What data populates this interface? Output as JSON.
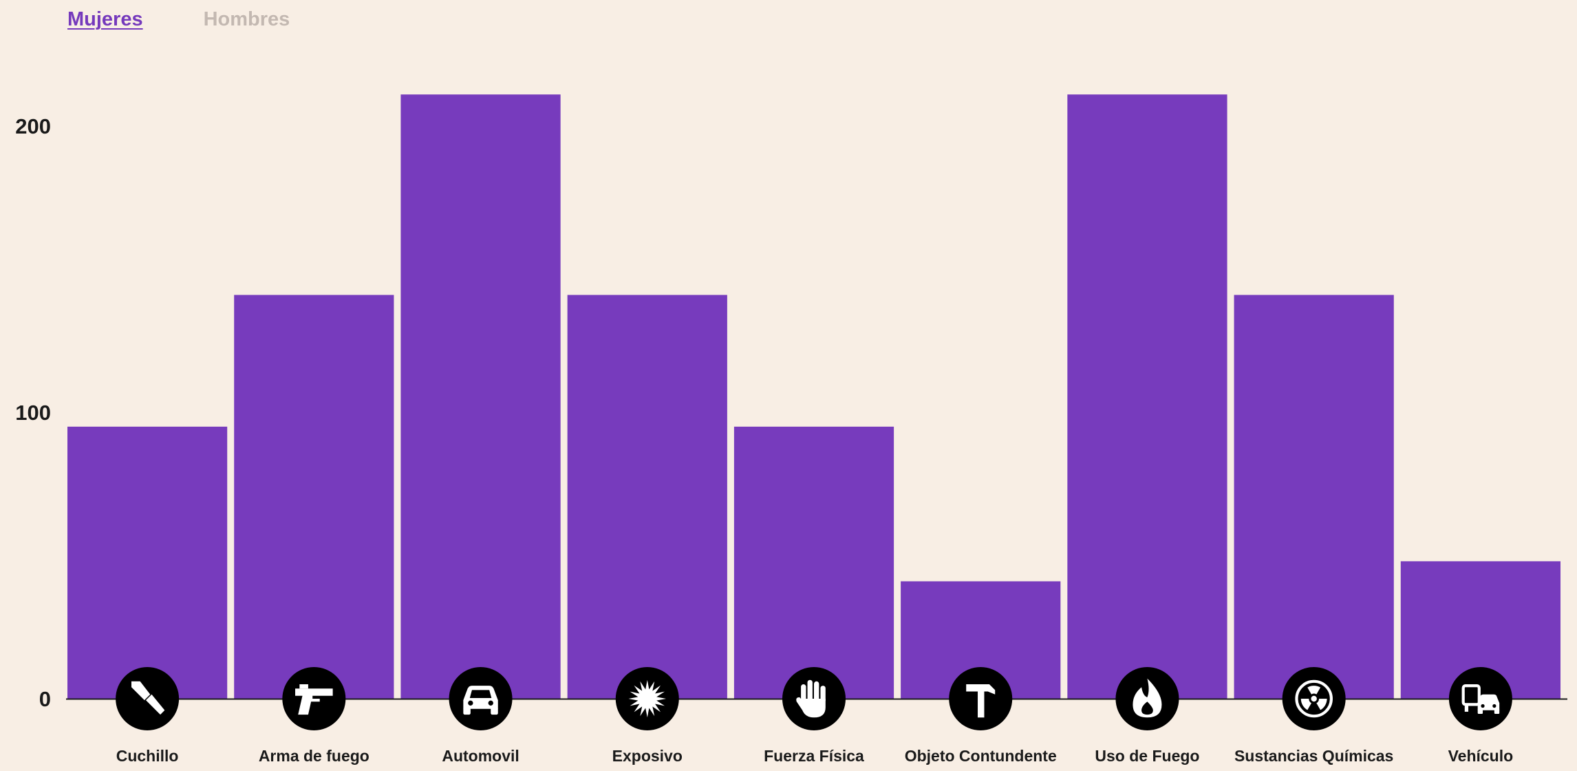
{
  "tabs": {
    "women_label": "Mujeres",
    "men_label": "Hombres"
  },
  "colors": {
    "background": "#f8eee4",
    "bar": "#773bbd",
    "icon_bg": "#000000",
    "icon_fg": "#ffffff",
    "tab_active": "#7539bc",
    "tab_inactive": "#c3b8b1"
  },
  "chart_data": {
    "type": "bar",
    "categories": [
      "Cuchillo",
      "Arma de fuego",
      "Automovil",
      "Exposivo",
      "Fuerza Física",
      "Objeto Contundente",
      "Uso de Fuego",
      "Sustancias Químicas",
      "Vehículo"
    ],
    "icons": [
      "knife-icon",
      "gun-icon",
      "car-icon",
      "explosion-icon",
      "hand-icon",
      "hammer-icon",
      "fire-icon",
      "radioactive-icon",
      "vehicles-icon"
    ],
    "values": [
      95,
      141,
      211,
      141,
      95,
      41,
      211,
      141,
      48
    ],
    "yticks": [
      0,
      100,
      200
    ],
    "ylim": [
      0,
      211
    ],
    "title": "",
    "xlabel": "",
    "ylabel": ""
  }
}
